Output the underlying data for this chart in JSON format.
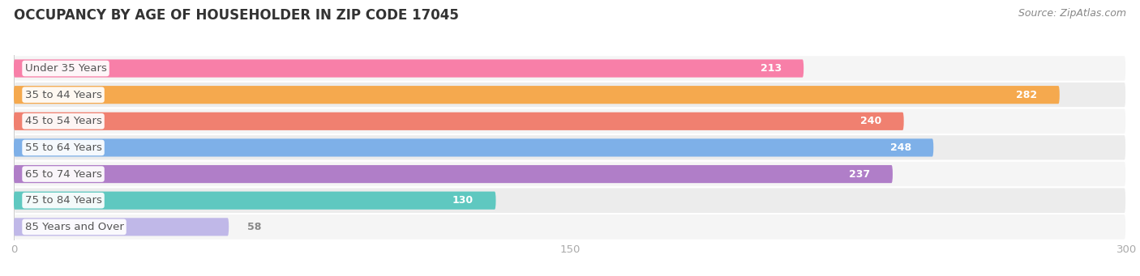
{
  "title": "OCCUPANCY BY AGE OF HOUSEHOLDER IN ZIP CODE 17045",
  "source": "Source: ZipAtlas.com",
  "categories": [
    "Under 35 Years",
    "35 to 44 Years",
    "45 to 54 Years",
    "55 to 64 Years",
    "65 to 74 Years",
    "75 to 84 Years",
    "85 Years and Over"
  ],
  "values": [
    213,
    282,
    240,
    248,
    237,
    130,
    58
  ],
  "bar_colors": [
    "#F87FA8",
    "#F5A94E",
    "#F08070",
    "#7EB0E8",
    "#B07EC8",
    "#5FC8C0",
    "#C0B8E8"
  ],
  "row_bg_color": "#EFEFEF",
  "background_color": "#FFFFFF",
  "xlim": [
    0,
    300
  ],
  "xticks": [
    0,
    150,
    300
  ],
  "title_fontsize": 12,
  "label_fontsize": 9.5,
  "value_fontsize": 9,
  "source_fontsize": 9,
  "bar_height": 0.68,
  "value_label_color_inside": "#FFFFFF",
  "value_label_color_outside": "#888888",
  "title_color": "#333333",
  "label_text_color": "#555555",
  "source_color": "#888888"
}
